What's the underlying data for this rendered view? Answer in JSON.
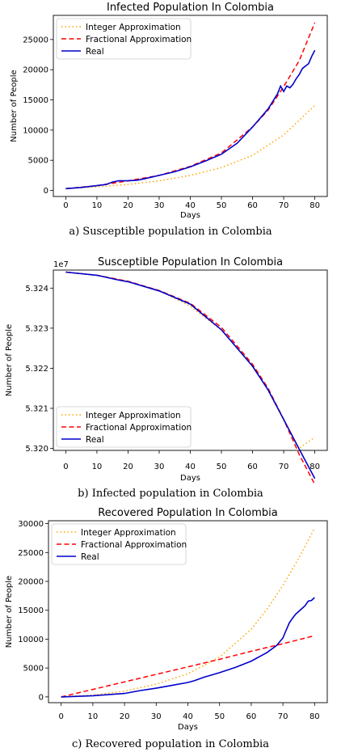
{
  "captions": {
    "a": "a) Susceptible population in Colombia",
    "b": "b) Infected population in Colombia",
    "c": "c) Recovered population in Colombia"
  },
  "colors": {
    "integer": "#ffa500",
    "fractional": "#ff0000",
    "real": "#0000cc"
  },
  "chart_data": [
    {
      "type": "line",
      "title": "Infected Population In Colombia",
      "xlabel": "Days",
      "ylabel": "Number of People",
      "xlim": [
        -4,
        84
      ],
      "ylim": [
        -1000,
        29000
      ],
      "xticks": [
        0,
        10,
        20,
        30,
        40,
        50,
        60,
        70,
        80
      ],
      "yticks": [
        0,
        5000,
        10000,
        15000,
        20000,
        25000
      ],
      "ytick_labels": [
        "0",
        "5000",
        "10000",
        "15000",
        "20000",
        "25000"
      ],
      "offset_label": "",
      "legend_position": "top-left",
      "grid": false,
      "series": [
        {
          "name": "Integer Approximation",
          "style": "dotted",
          "x": [
            0,
            10,
            20,
            30,
            40,
            50,
            60,
            70,
            80
          ],
          "y": [
            300,
            600,
            1000,
            1600,
            2500,
            3800,
            5800,
            9200,
            14100
          ]
        },
        {
          "name": "Fractional Approximation",
          "style": "dashed",
          "x": [
            0,
            10,
            20,
            30,
            40,
            50,
            60,
            65,
            70,
            75,
            80
          ],
          "y": [
            300,
            800,
            1600,
            2500,
            4000,
            6200,
            10500,
            13300,
            17200,
            21500,
            27800
          ]
        },
        {
          "name": "Real",
          "style": "solid",
          "x": [
            0,
            5,
            10,
            13,
            15,
            17,
            20,
            23,
            25,
            30,
            35,
            40,
            45,
            50,
            55,
            60,
            63,
            65,
            68,
            69,
            70,
            71,
            72,
            73,
            74,
            75,
            76,
            77,
            78,
            79,
            80
          ],
          "y": [
            300,
            500,
            800,
            1000,
            1400,
            1600,
            1600,
            1700,
            1900,
            2500,
            3100,
            3900,
            4900,
            6000,
            7800,
            10500,
            12300,
            13500,
            16000,
            17300,
            16400,
            17300,
            17000,
            17600,
            18500,
            19200,
            20200,
            20600,
            21000,
            22200,
            23200
          ]
        }
      ]
    },
    {
      "type": "line",
      "title": "Susceptible Population In Colombia",
      "xlabel": "Days",
      "ylabel": "Number of People",
      "xlim": [
        -4,
        84
      ],
      "ylim": [
        5.31995,
        5.32445
      ],
      "xticks": [
        0,
        10,
        20,
        30,
        40,
        50,
        60,
        70,
        80
      ],
      "yticks": [
        5.32,
        5.321,
        5.322,
        5.323,
        5.324
      ],
      "ytick_labels": [
        "5.320",
        "5.321",
        "5.322",
        "5.323",
        "5.324"
      ],
      "offset_label": "1e7",
      "legend_position": "bottom-left",
      "grid": false,
      "series": [
        {
          "name": "Integer Approximation",
          "style": "dotted",
          "x": [
            0,
            10,
            20,
            30,
            40,
            50,
            60,
            65,
            70,
            75,
            80
          ],
          "y": [
            5.3244,
            5.32432,
            5.32417,
            5.32394,
            5.32355,
            5.32295,
            5.32207,
            5.32145,
            5.3207,
            5.32,
            5.32028
          ]
        },
        {
          "name": "Fractional Approximation",
          "style": "dashed",
          "x": [
            0,
            10,
            20,
            30,
            40,
            50,
            60,
            65,
            70,
            75,
            80
          ],
          "y": [
            5.3244,
            5.32432,
            5.32417,
            5.32394,
            5.32362,
            5.32302,
            5.3221,
            5.3215,
            5.32072,
            5.31985,
            5.3191
          ]
        },
        {
          "name": "Real",
          "style": "solid",
          "x": [
            0,
            10,
            17,
            20,
            30,
            40,
            50,
            60,
            65,
            70,
            75,
            80
          ],
          "y": [
            5.3244,
            5.32432,
            5.3242,
            5.32416,
            5.32393,
            5.3236,
            5.32296,
            5.32205,
            5.32146,
            5.32072,
            5.31998,
            5.31925
          ]
        }
      ]
    },
    {
      "type": "line",
      "title": "Recovered Population In Colombia",
      "xlabel": "Days",
      "ylabel": "Number of People",
      "xlim": [
        -4,
        84
      ],
      "ylim": [
        -1000,
        30500
      ],
      "xticks": [
        0,
        10,
        20,
        30,
        40,
        50,
        60,
        70,
        80
      ],
      "yticks": [
        0,
        5000,
        10000,
        15000,
        20000,
        25000,
        30000
      ],
      "ytick_labels": [
        "0",
        "5000",
        "10000",
        "15000",
        "20000",
        "25000",
        "30000"
      ],
      "offset_label": "",
      "legend_position": "top-left",
      "grid": false,
      "series": [
        {
          "name": "Integer Approximation",
          "style": "dotted",
          "x": [
            0,
            10,
            20,
            30,
            40,
            50,
            60,
            65,
            70,
            75,
            80
          ],
          "y": [
            0,
            300,
            1000,
            2200,
            4000,
            6900,
            11700,
            15200,
            19300,
            24000,
            29200
          ]
        },
        {
          "name": "Fractional Approximation",
          "style": "dashed",
          "x": [
            0,
            10,
            20,
            30,
            40,
            50,
            60,
            70,
            80
          ],
          "y": [
            0,
            1300,
            2600,
            3900,
            5200,
            6500,
            7900,
            9200,
            10600
          ]
        },
        {
          "name": "Real",
          "style": "solid",
          "x": [
            0,
            10,
            20,
            25,
            30,
            35,
            40,
            42,
            45,
            50,
            55,
            60,
            65,
            68,
            70,
            71,
            72,
            73,
            74,
            75,
            76,
            77,
            78,
            79,
            80
          ],
          "y": [
            0,
            200,
            600,
            1100,
            1500,
            2000,
            2500,
            2800,
            3400,
            4200,
            5100,
            6200,
            7700,
            8900,
            10200,
            11500,
            12800,
            13600,
            14300,
            14800,
            15300,
            15800,
            16600,
            16700,
            17200
          ]
        }
      ]
    }
  ]
}
